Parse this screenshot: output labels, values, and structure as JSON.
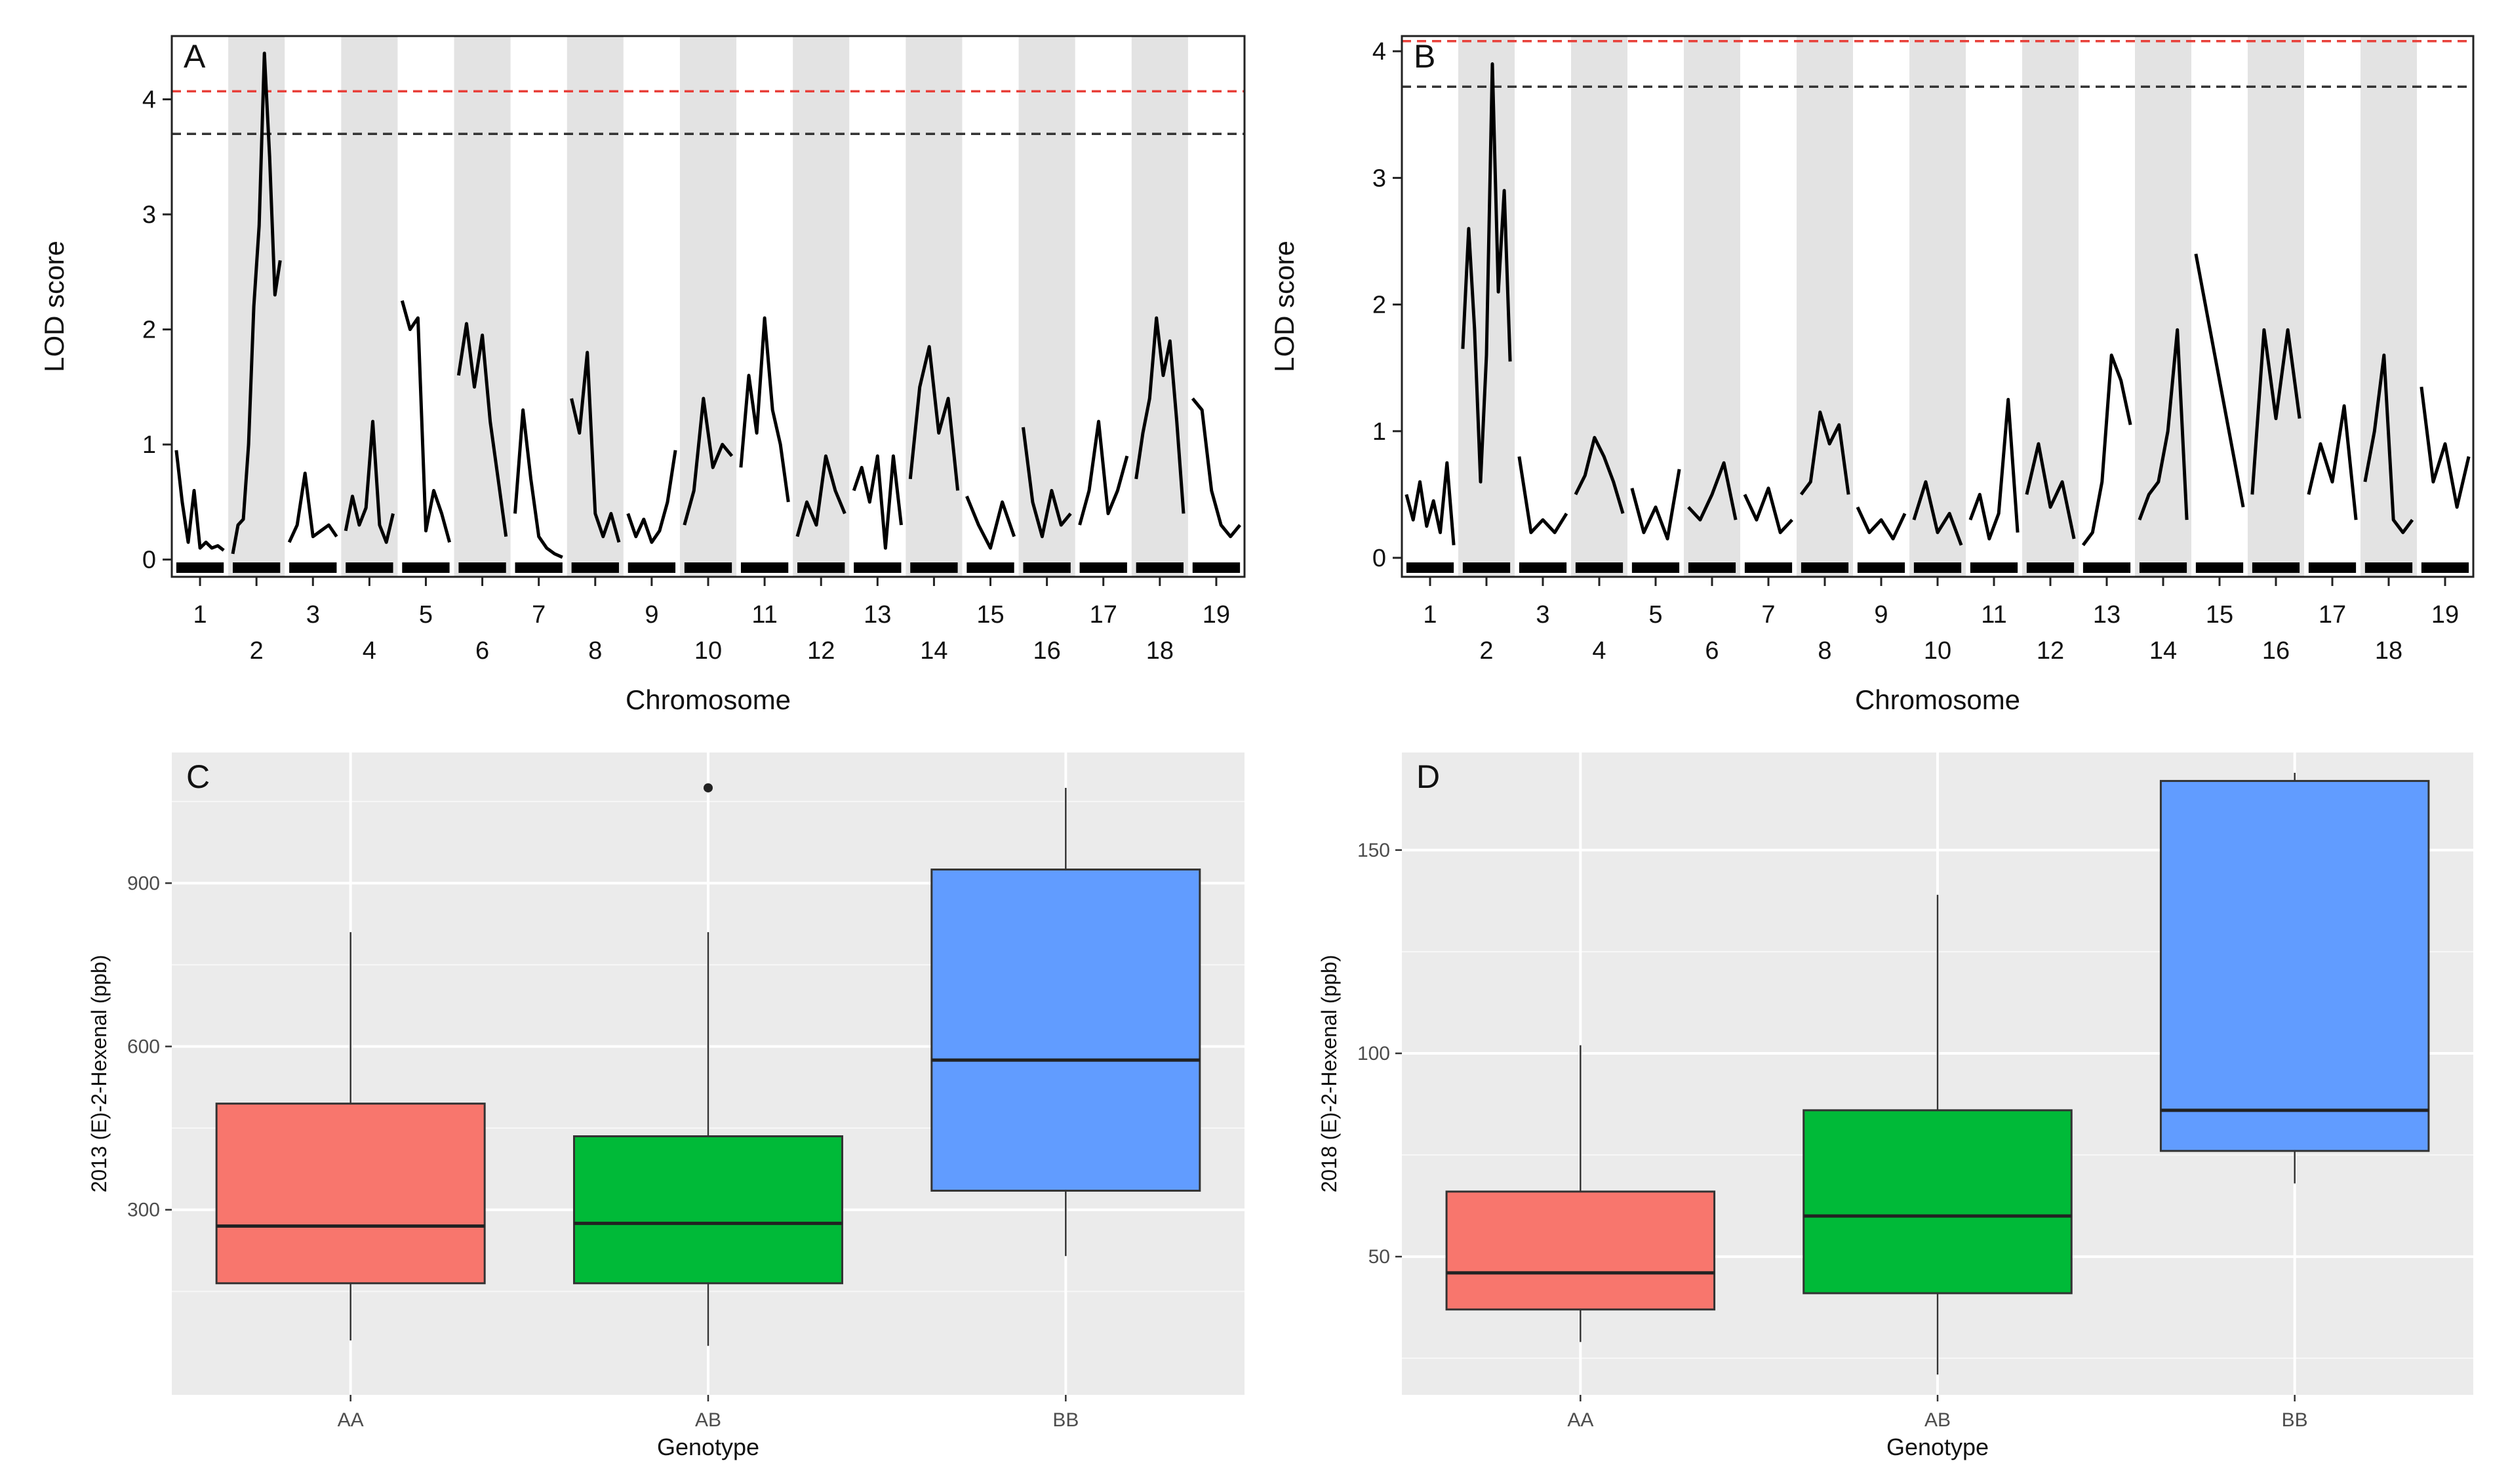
{
  "chart_data": [
    {
      "panel": "A",
      "type": "line",
      "title": "",
      "xlabel": "Chromosome",
      "ylabel": "LOD score",
      "ylim": [
        -0.15,
        4.55
      ],
      "yticks": [
        0,
        1,
        2,
        3,
        4
      ],
      "grid": false,
      "chromosomes": [
        "1",
        "2",
        "3",
        "4",
        "5",
        "6",
        "7",
        "8",
        "9",
        "10",
        "11",
        "12",
        "13",
        "14",
        "15",
        "16",
        "17",
        "18",
        "19"
      ],
      "chromosome_labels_top_row": [
        "1",
        "3",
        "5",
        "7",
        "9",
        "11",
        "13",
        "15",
        "17",
        "19"
      ],
      "chromosome_labels_bottom_row": [
        "2",
        "4",
        "6",
        "8",
        "10",
        "12",
        "14",
        "16",
        "18"
      ],
      "thresholds": [
        {
          "name": "red threshold",
          "value": 4.07,
          "color": "#e8403a"
        },
        {
          "name": "black threshold",
          "value": 3.7,
          "color": "#333333"
        }
      ],
      "series": [
        {
          "name": "LOD",
          "color": "#000000",
          "profiles": [
            [
              0.95,
              0.5,
              0.15,
              0.6,
              0.1,
              0.15,
              0.1,
              0.12,
              0.08
            ],
            [
              0.05,
              0.3,
              0.35,
              1.0,
              2.2,
              2.9,
              4.4,
              3.5,
              2.3,
              2.6
            ],
            [
              0.15,
              0.3,
              0.75,
              0.2,
              0.25,
              0.3,
              0.2
            ],
            [
              0.25,
              0.55,
              0.3,
              0.45,
              1.2,
              0.3,
              0.15,
              0.4
            ],
            [
              2.25,
              2.0,
              2.1,
              0.25,
              0.6,
              0.4,
              0.15
            ],
            [
              1.6,
              2.05,
              1.5,
              1.95,
              1.2,
              0.7,
              0.2
            ],
            [
              0.4,
              1.3,
              0.7,
              0.2,
              0.1,
              0.05,
              0.02
            ],
            [
              1.4,
              1.1,
              1.8,
              0.4,
              0.2,
              0.4,
              0.15
            ],
            [
              0.4,
              0.2,
              0.35,
              0.15,
              0.25,
              0.5,
              0.95
            ],
            [
              0.3,
              0.6,
              1.4,
              0.8,
              1.0,
              0.9
            ],
            [
              0.8,
              1.6,
              1.1,
              2.1,
              1.3,
              1.0,
              0.5
            ],
            [
              0.2,
              0.5,
              0.3,
              0.9,
              0.6,
              0.4
            ],
            [
              0.6,
              0.8,
              0.5,
              0.9,
              0.1,
              0.9,
              0.3
            ],
            [
              0.7,
              1.5,
              1.85,
              1.1,
              1.4,
              0.6
            ],
            [
              0.55,
              0.3,
              0.1,
              0.5,
              0.2
            ],
            [
              1.15,
              0.5,
              0.2,
              0.6,
              0.3,
              0.4
            ],
            [
              0.3,
              0.6,
              1.2,
              0.4,
              0.6,
              0.9
            ],
            [
              0.7,
              1.1,
              1.4,
              2.1,
              1.6,
              1.9,
              1.2,
              0.4
            ],
            [
              1.4,
              1.3,
              0.6,
              0.3,
              0.2,
              0.3
            ]
          ]
        }
      ]
    },
    {
      "panel": "B",
      "type": "line",
      "title": "",
      "xlabel": "Chromosome",
      "ylabel": "LOD score",
      "ylim": [
        -0.15,
        4.12
      ],
      "yticks": [
        0,
        1,
        2,
        3,
        4
      ],
      "grid": false,
      "chromosomes": [
        "1",
        "2",
        "3",
        "4",
        "5",
        "6",
        "7",
        "8",
        "9",
        "10",
        "11",
        "12",
        "13",
        "14",
        "15",
        "16",
        "17",
        "18",
        "19"
      ],
      "chromosome_labels_top_row": [
        "1",
        "3",
        "5",
        "7",
        "9",
        "11",
        "13",
        "15",
        "17",
        "19"
      ],
      "chromosome_labels_bottom_row": [
        "2",
        "4",
        "6",
        "8",
        "10",
        "12",
        "14",
        "16",
        "18"
      ],
      "thresholds": [
        {
          "name": "red threshold",
          "value": 4.08,
          "color": "#e8403a"
        },
        {
          "name": "black threshold",
          "value": 3.72,
          "color": "#333333"
        }
      ],
      "series": [
        {
          "name": "LOD",
          "color": "#000000",
          "profiles": [
            [
              0.5,
              0.3,
              0.6,
              0.25,
              0.45,
              0.2,
              0.75,
              0.1
            ],
            [
              1.65,
              2.6,
              1.8,
              0.6,
              1.6,
              3.9,
              2.1,
              2.9,
              1.55
            ],
            [
              0.8,
              0.2,
              0.3,
              0.2,
              0.35
            ],
            [
              0.5,
              0.65,
              0.95,
              0.8,
              0.6,
              0.35
            ],
            [
              0.55,
              0.2,
              0.4,
              0.15,
              0.7
            ],
            [
              0.4,
              0.3,
              0.5,
              0.75,
              0.3
            ],
            [
              0.5,
              0.3,
              0.55,
              0.2,
              0.3
            ],
            [
              0.5,
              0.6,
              1.15,
              0.9,
              1.05,
              0.5
            ],
            [
              0.4,
              0.2,
              0.3,
              0.15,
              0.35
            ],
            [
              0.3,
              0.6,
              0.2,
              0.35,
              0.1
            ],
            [
              0.3,
              0.5,
              0.15,
              0.35,
              1.25,
              0.2
            ],
            [
              0.5,
              0.9,
              0.4,
              0.6,
              0.15
            ],
            [
              0.1,
              0.2,
              0.6,
              1.6,
              1.4,
              1.05
            ],
            [
              0.3,
              0.5,
              0.6,
              1.0,
              1.8,
              0.3
            ],
            [
              2.4,
              0.4
            ],
            [
              0.5,
              1.8,
              1.1,
              1.8,
              1.1
            ],
            [
              0.5,
              0.9,
              0.6,
              1.2,
              0.3
            ],
            [
              0.6,
              1.0,
              1.6,
              0.3,
              0.2,
              0.3
            ],
            [
              1.35,
              0.6,
              0.9,
              0.4,
              0.8
            ]
          ]
        }
      ]
    },
    {
      "panel": "C",
      "type": "box",
      "title": "",
      "xlabel": "Genotype",
      "ylabel": "2013 (E)-2-Hexenal (ppb)",
      "categories": [
        "AA",
        "AB",
        "BB"
      ],
      "colors": [
        "#f8766d",
        "#00ba38",
        "#619cff"
      ],
      "ylim": [
        -40,
        1140
      ],
      "yticks": [
        300,
        600,
        900
      ],
      "grid": true,
      "boxes": [
        {
          "category": "AA",
          "whisker_low": 60,
          "q1": 165,
          "median": 270,
          "q3": 495,
          "whisker_high": 810,
          "outliers": []
        },
        {
          "category": "AB",
          "whisker_low": 50,
          "q1": 165,
          "median": 275,
          "q3": 435,
          "whisker_high": 810,
          "outliers": [
            1075
          ]
        },
        {
          "category": "BB",
          "whisker_low": 215,
          "q1": 335,
          "median": 575,
          "q3": 925,
          "whisker_high": 1075,
          "outliers": []
        }
      ]
    },
    {
      "panel": "D",
      "type": "box",
      "title": "",
      "xlabel": "Genotype",
      "ylabel": "2018 (E)-2-Hexenal (ppb)",
      "categories": [
        "AA",
        "AB",
        "BB"
      ],
      "colors": [
        "#f8766d",
        "#00ba38",
        "#619cff"
      ],
      "ylim": [
        16,
        174
      ],
      "yticks": [
        50,
        100,
        150
      ],
      "grid": true,
      "boxes": [
        {
          "category": "AA",
          "whisker_low": 29,
          "q1": 37,
          "median": 46,
          "q3": 66,
          "whisker_high": 102,
          "outliers": []
        },
        {
          "category": "AB",
          "whisker_low": 21,
          "q1": 41,
          "median": 60,
          "q3": 86,
          "whisker_high": 139,
          "outliers": []
        },
        {
          "category": "BB",
          "whisker_low": 68,
          "q1": 76,
          "median": 86,
          "q3": 167,
          "whisker_high": 169,
          "outliers": []
        }
      ]
    }
  ]
}
